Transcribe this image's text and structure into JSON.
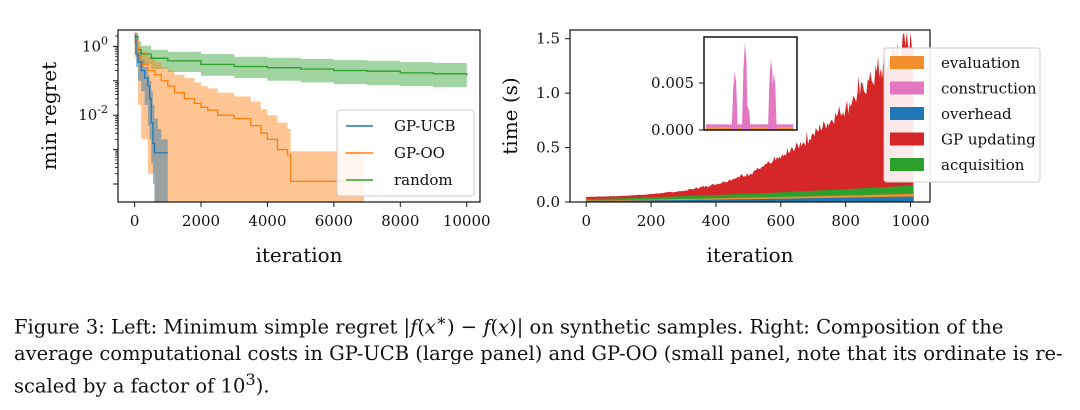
{
  "chart_data": [
    {
      "type": "line",
      "xlabel": "iteration",
      "ylabel": "min regret",
      "xlim": [
        -500,
        10400
      ],
      "ylim": [
        3e-05,
        3
      ],
      "yscale": "log",
      "xticks": [
        0,
        2000,
        4000,
        6000,
        8000,
        10000
      ],
      "xtick_labels": [
        "0",
        "2000",
        "4000",
        "6000",
        "8000",
        "10000"
      ],
      "yticks": [
        1,
        0.01
      ],
      "ytick_labels": [
        "10^0",
        "10^-2"
      ],
      "legend_position": "center-right",
      "colors": {
        "GP-UCB": "#1f77b4",
        "GP-OO": "#ff7f0e",
        "random": "#2ca02c"
      },
      "series": [
        {
          "name": "GP-UCB",
          "line": {
            "x": [
              0,
              40,
              100,
              200,
              300,
              400,
              450,
              500,
              550,
              600,
              700,
              800,
              1000
            ],
            "y": [
              2.0,
              0.6,
              0.35,
              0.2,
              0.12,
              0.07,
              0.03,
              0.006,
              0.0015,
              0.0008,
              0.0008,
              0.0008,
              0.0008
            ]
          },
          "band_upper": [
            2.5,
            1.2,
            0.7,
            0.4,
            0.25,
            0.15,
            0.1,
            0.05,
            0.02,
            0.008,
            0.004,
            0.002,
            0.002
          ],
          "band_lower": [
            1.2,
            0.25,
            0.1,
            0.05,
            0.02,
            0.005,
            0.002,
            0.0004,
            0.0001,
            3e-05,
            3e-05,
            3e-05,
            3e-05
          ]
        },
        {
          "name": "GP-OO",
          "line": {
            "x": [
              0,
              100,
              200,
              400,
              600,
              800,
              1000,
              1200,
              1500,
              1800,
              2000,
              2200,
              2500,
              3000,
              3500,
              3800,
              4000,
              4300,
              4600,
              4700,
              5000,
              6000,
              6900
            ],
            "y": [
              1.5,
              0.5,
              0.3,
              0.2,
              0.15,
              0.1,
              0.07,
              0.045,
              0.03,
              0.022,
              0.017,
              0.014,
              0.01,
              0.008,
              0.005,
              0.003,
              0.002,
              0.001,
              0.0007,
              0.00012,
              0.00012,
              0.00012,
              0.00012
            ]
          },
          "band_upper": [
            2.5,
            1.0,
            0.7,
            0.5,
            0.35,
            0.25,
            0.2,
            0.15,
            0.12,
            0.09,
            0.07,
            0.06,
            0.045,
            0.035,
            0.025,
            0.015,
            0.01,
            0.006,
            0.004,
            0.0009,
            0.0009,
            0.0009,
            0.0009
          ],
          "band_lower": [
            0.5,
            0.02,
            0.002,
            0.0002,
            3e-05,
            3e-05,
            3e-05,
            3e-05,
            3e-05,
            3e-05,
            3e-05,
            3e-05,
            3e-05,
            3e-05,
            3e-05,
            3e-05,
            3e-05,
            3e-05,
            3e-05,
            3e-05,
            3e-05,
            3e-05,
            3e-05
          ]
        },
        {
          "name": "random",
          "line": {
            "x": [
              0,
              100,
              200,
              500,
              1000,
              2000,
              3000,
              4000,
              5000,
              6000,
              7000,
              8000,
              9000,
              10000
            ],
            "y": [
              2.0,
              0.8,
              0.6,
              0.45,
              0.38,
              0.3,
              0.26,
              0.24,
              0.22,
              0.2,
              0.19,
              0.17,
              0.16,
              0.14
            ]
          },
          "band_upper": [
            2.5,
            1.4,
            1.05,
            0.8,
            0.7,
            0.6,
            0.5,
            0.47,
            0.43,
            0.4,
            0.38,
            0.35,
            0.33,
            0.3
          ],
          "band_lower": [
            1.2,
            0.4,
            0.3,
            0.22,
            0.18,
            0.14,
            0.12,
            0.1,
            0.09,
            0.08,
            0.075,
            0.07,
            0.065,
            0.06
          ]
        }
      ]
    },
    {
      "type": "area",
      "xlabel": "iteration",
      "ylabel": "time (s)",
      "xlim": [
        -50,
        1060
      ],
      "ylim": [
        0,
        1.58
      ],
      "xticks": [
        0,
        200,
        400,
        600,
        800,
        1000
      ],
      "xtick_labels": [
        "0",
        "200",
        "400",
        "600",
        "800",
        "1000"
      ],
      "yticks": [
        0.0,
        0.5,
        1.0,
        1.5
      ],
      "ytick_labels": [
        "0.0",
        "0.5",
        "1.0",
        "1.5"
      ],
      "legend_position": "right",
      "legend_order": [
        "evaluation",
        "construction",
        "overhead",
        "GP updating",
        "acquisition"
      ],
      "colors": {
        "evaluation": "#f28e2b",
        "construction": "#e377c2",
        "overhead": "#1f77b4",
        "GP updating": "#d62728",
        "acquisition": "#2ca02c"
      },
      "x": [
        0,
        100,
        200,
        300,
        400,
        500,
        600,
        700,
        800,
        900,
        1000
      ],
      "series": [
        {
          "name": "overhead",
          "values": [
            0.01,
            0.012,
            0.015,
            0.018,
            0.022,
            0.026,
            0.03,
            0.035,
            0.04,
            0.045,
            0.05
          ]
        },
        {
          "name": "evaluation",
          "values": [
            0.005,
            0.006,
            0.008,
            0.01,
            0.012,
            0.014,
            0.016,
            0.018,
            0.02,
            0.022,
            0.025
          ]
        },
        {
          "name": "acquisition",
          "values": [
            0.012,
            0.015,
            0.02,
            0.025,
            0.03,
            0.036,
            0.042,
            0.05,
            0.058,
            0.066,
            0.075
          ]
        },
        {
          "name": "GP updating",
          "values": [
            0.02,
            0.02,
            0.028,
            0.047,
            0.096,
            0.174,
            0.302,
            0.497,
            0.722,
            1.017,
            1.3
          ]
        },
        {
          "name": "construction",
          "values": [
            0,
            0,
            0,
            0,
            0,
            0,
            0,
            0,
            0,
            0,
            0
          ]
        }
      ],
      "inset": {
        "type": "area",
        "ylim": [
          0,
          0.0099
        ],
        "yticks": [
          0.0,
          0.005
        ],
        "ytick_labels": [
          "0.000",
          "0.005"
        ],
        "baseline": 0.0003,
        "spikes": [
          {
            "x": 0.33,
            "value": 0.0062
          },
          {
            "x": 0.44,
            "value": 0.0093
          },
          {
            "x": 0.47,
            "value": 0.0025
          },
          {
            "x": 0.72,
            "value": 0.0076
          },
          {
            "x": 0.75,
            "value": 0.006
          }
        ]
      }
    }
  ],
  "caption": {
    "p1": "Figure 3: Left: Minimum simple regret |",
    "f1": "f",
    "p2": "(",
    "x1": "x",
    "sup1": "∗",
    "p3": ") − ",
    "f2": "f",
    "p4": "(",
    "x2": "x",
    "p5": ")| on synthetic samples. Right: Composition of the average computational costs in GP-UCB (large panel) and GP-OO (small panel, note that its ordinate is re-scaled by a factor of 10",
    "sup2": "3",
    "p6": ")."
  }
}
